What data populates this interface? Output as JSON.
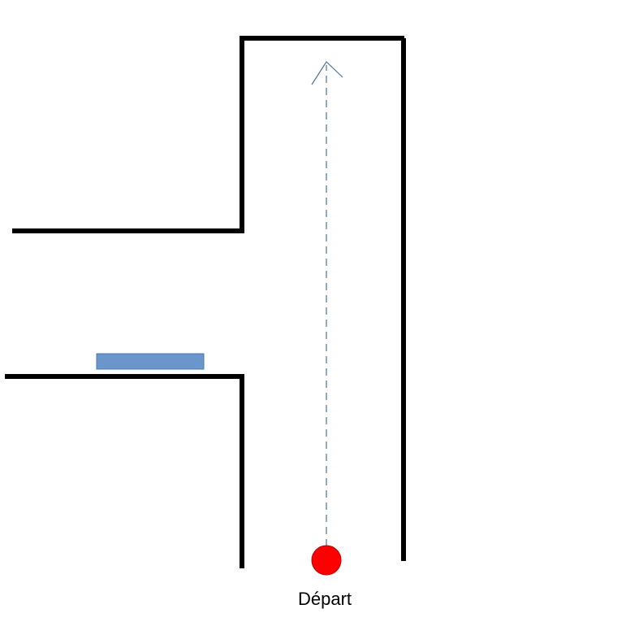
{
  "labels": {
    "start": "Départ"
  },
  "colors": {
    "wall": "#000000",
    "route": "#4a6fa5",
    "obstacle_fill": "#6a96cc",
    "obstacle_stroke": "#4e7ab0",
    "start_fill": "#ff0000",
    "start_stroke": "#b00000"
  },
  "icons": {
    "start": "red-circle",
    "route_end": "arrow-up"
  }
}
